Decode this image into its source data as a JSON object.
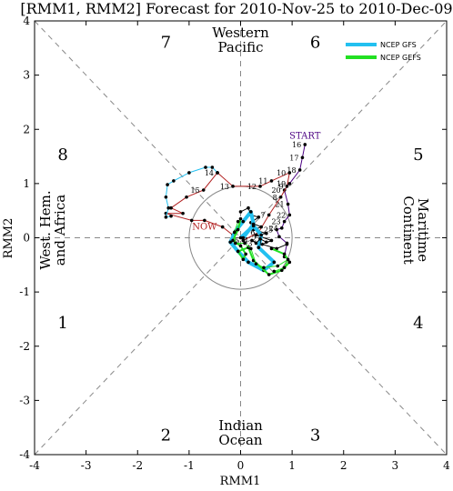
{
  "chart_data": {
    "type": "line",
    "title": "[RMM1, RMM2] Forecast for 2010-Nov-25 to 2010-Dec-09",
    "xlabel": "RMM1",
    "ylabel": "RMM2",
    "xlim": [
      -4,
      4
    ],
    "ylim": [
      -4,
      4
    ],
    "ticks": [
      -4,
      -3,
      -2,
      -1,
      0,
      1,
      2,
      3,
      4
    ],
    "phase_numbers": [
      {
        "text": "1",
        "x": -3.45,
        "y": -1.55
      },
      {
        "text": "2",
        "x": -1.45,
        "y": -3.62
      },
      {
        "text": "3",
        "x": 1.45,
        "y": -3.62
      },
      {
        "text": "4",
        "x": 3.45,
        "y": -1.55
      },
      {
        "text": "5",
        "x": 3.45,
        "y": 1.55
      },
      {
        "text": "6",
        "x": 1.45,
        "y": 3.62
      },
      {
        "text": "7",
        "x": -1.45,
        "y": 3.62
      },
      {
        "text": "8",
        "x": -3.45,
        "y": 1.55
      }
    ],
    "region_labels": {
      "top": [
        "Western",
        "Pacific"
      ],
      "bottom": [
        "Indian",
        "Ocean"
      ],
      "left": [
        "West. Hem.",
        "and Africa"
      ],
      "right": [
        "Maritime",
        "Continent"
      ]
    },
    "annotations": [
      {
        "text": "START",
        "x": 1.25,
        "y": 1.83,
        "color": "#4b0082"
      },
      {
        "text": "NOW",
        "x": -0.7,
        "y": 0.15,
        "color": "#b22222"
      }
    ],
    "legend": {
      "placement": "top-right",
      "entries": [
        {
          "label": "NCEP GFS",
          "color": "#22c0f0"
        },
        {
          "label": "NCEP GEFS",
          "color": "#22e022"
        }
      ]
    },
    "series": [
      {
        "color": "#4b0082",
        "width": 1,
        "labels": [
          "16",
          "17",
          "18",
          "19",
          "20",
          "21",
          "22",
          "23",
          "24",
          "25"
        ],
        "points": [
          [
            1.25,
            1.72
          ],
          [
            1.2,
            1.48
          ],
          [
            1.15,
            1.25
          ],
          [
            0.95,
            1.0
          ],
          [
            0.85,
            0.88
          ],
          [
            0.92,
            0.62
          ],
          [
            0.95,
            0.42
          ],
          [
            0.85,
            0.3
          ],
          [
            0.8,
            0.18
          ],
          [
            0.7,
            0.15
          ],
          [
            0.75,
            0.02
          ],
          [
            0.9,
            -0.1
          ],
          [
            0.85,
            -0.35
          ]
        ]
      },
      {
        "color": "#b22222",
        "width": 1,
        "labels": [
          "5",
          "6",
          "7",
          "8",
          "9",
          "10",
          "11",
          "12",
          "13",
          "14",
          "15"
        ],
        "points": [
          [
            0.05,
            -0.05
          ],
          [
            0.35,
            0.1
          ],
          [
            0.55,
            0.42
          ],
          [
            0.78,
            0.75
          ],
          [
            0.9,
            0.95
          ],
          [
            0.95,
            1.2
          ],
          [
            0.6,
            1.05
          ],
          [
            0.38,
            0.95
          ],
          [
            -0.15,
            0.95
          ],
          [
            -0.45,
            1.2
          ],
          [
            -0.72,
            0.88
          ],
          [
            -1.05,
            0.75
          ],
          [
            -1.35,
            0.55
          ],
          [
            -1.12,
            0.45
          ],
          [
            -1.45,
            0.45
          ],
          [
            -0.95,
            0.32
          ],
          [
            -0.7,
            0.32
          ],
          [
            -0.35,
            0.2
          ],
          [
            -0.15,
            0.05
          ]
        ]
      },
      {
        "color": "#22c0f0",
        "width": 1,
        "labels": [],
        "points": [
          [
            -0.45,
            1.2
          ],
          [
            -0.55,
            1.3
          ],
          [
            -0.68,
            1.3
          ],
          [
            -1.0,
            1.2
          ],
          [
            -1.3,
            1.05
          ],
          [
            -1.42,
            0.98
          ],
          [
            -1.45,
            0.75
          ],
          [
            -1.4,
            0.55
          ],
          [
            -1.45,
            0.38
          ],
          [
            -1.35,
            0.4
          ]
        ]
      },
      {
        "color": "#000000",
        "width": 1,
        "labels": [],
        "points": [
          [
            0.0,
            0.48
          ],
          [
            0.15,
            0.55
          ],
          [
            0.2,
            0.42
          ],
          [
            0.35,
            0.38
          ],
          [
            0.2,
            0.28
          ],
          [
            0.4,
            0.2
          ],
          [
            0.25,
            0.15
          ],
          [
            0.5,
            0.08
          ],
          [
            0.3,
            0.05
          ],
          [
            0.6,
            -0.05
          ],
          [
            0.42,
            -0.12
          ],
          [
            0.7,
            -0.2
          ],
          [
            0.9,
            -0.12
          ]
        ]
      },
      {
        "color": "#22c0f0",
        "width": 4,
        "labels": [],
        "points": [
          [
            0.0,
            0.0
          ],
          [
            0.25,
            0.22
          ],
          [
            0.4,
            0.05
          ],
          [
            0.35,
            -0.18
          ],
          [
            0.65,
            -0.45
          ],
          [
            0.45,
            -0.6
          ],
          [
            0.15,
            -0.45
          ],
          [
            -0.05,
            -0.25
          ],
          [
            -0.2,
            -0.08
          ],
          [
            -0.1,
            0.12
          ],
          [
            0.05,
            0.3
          ],
          [
            0.2,
            0.48
          ],
          [
            0.25,
            0.25
          ],
          [
            0.05,
            0.0
          ]
        ]
      },
      {
        "color": "#22e022",
        "width": 2,
        "labels": [],
        "points": [
          [
            0.0,
            0.35
          ],
          [
            -0.05,
            0.15
          ],
          [
            -0.15,
            -0.05
          ],
          [
            0.0,
            -0.15
          ],
          [
            0.1,
            -0.3
          ],
          [
            0.05,
            -0.4
          ],
          [
            -0.05,
            -0.25
          ],
          [
            0.15,
            -0.18
          ],
          [
            0.25,
            -0.42
          ],
          [
            0.55,
            -0.68
          ],
          [
            0.8,
            -0.6
          ],
          [
            0.95,
            -0.45
          ],
          [
            0.85,
            -0.3
          ],
          [
            0.6,
            -0.2
          ]
        ]
      },
      {
        "color": "#22e022",
        "width": 1,
        "labels": [],
        "points": [
          [
            -0.05,
            0.3
          ],
          [
            -0.12,
            0.1
          ],
          [
            -0.1,
            -0.1
          ],
          [
            0.08,
            -0.1
          ],
          [
            0.2,
            -0.2
          ],
          [
            0.3,
            -0.48
          ],
          [
            0.45,
            -0.55
          ],
          [
            0.72,
            -0.52
          ],
          [
            0.92,
            -0.4
          ],
          [
            0.85,
            -0.55
          ],
          [
            0.65,
            -0.62
          ]
        ]
      },
      {
        "color": "#000000",
        "width": 1,
        "labels": [
          "1",
          "2",
          "3",
          "4"
        ],
        "points": [
          [
            0.5,
            -0.08
          ],
          [
            0.38,
            -0.02
          ],
          [
            0.3,
            -0.1
          ],
          [
            0.22,
            -0.05
          ]
        ]
      }
    ]
  }
}
